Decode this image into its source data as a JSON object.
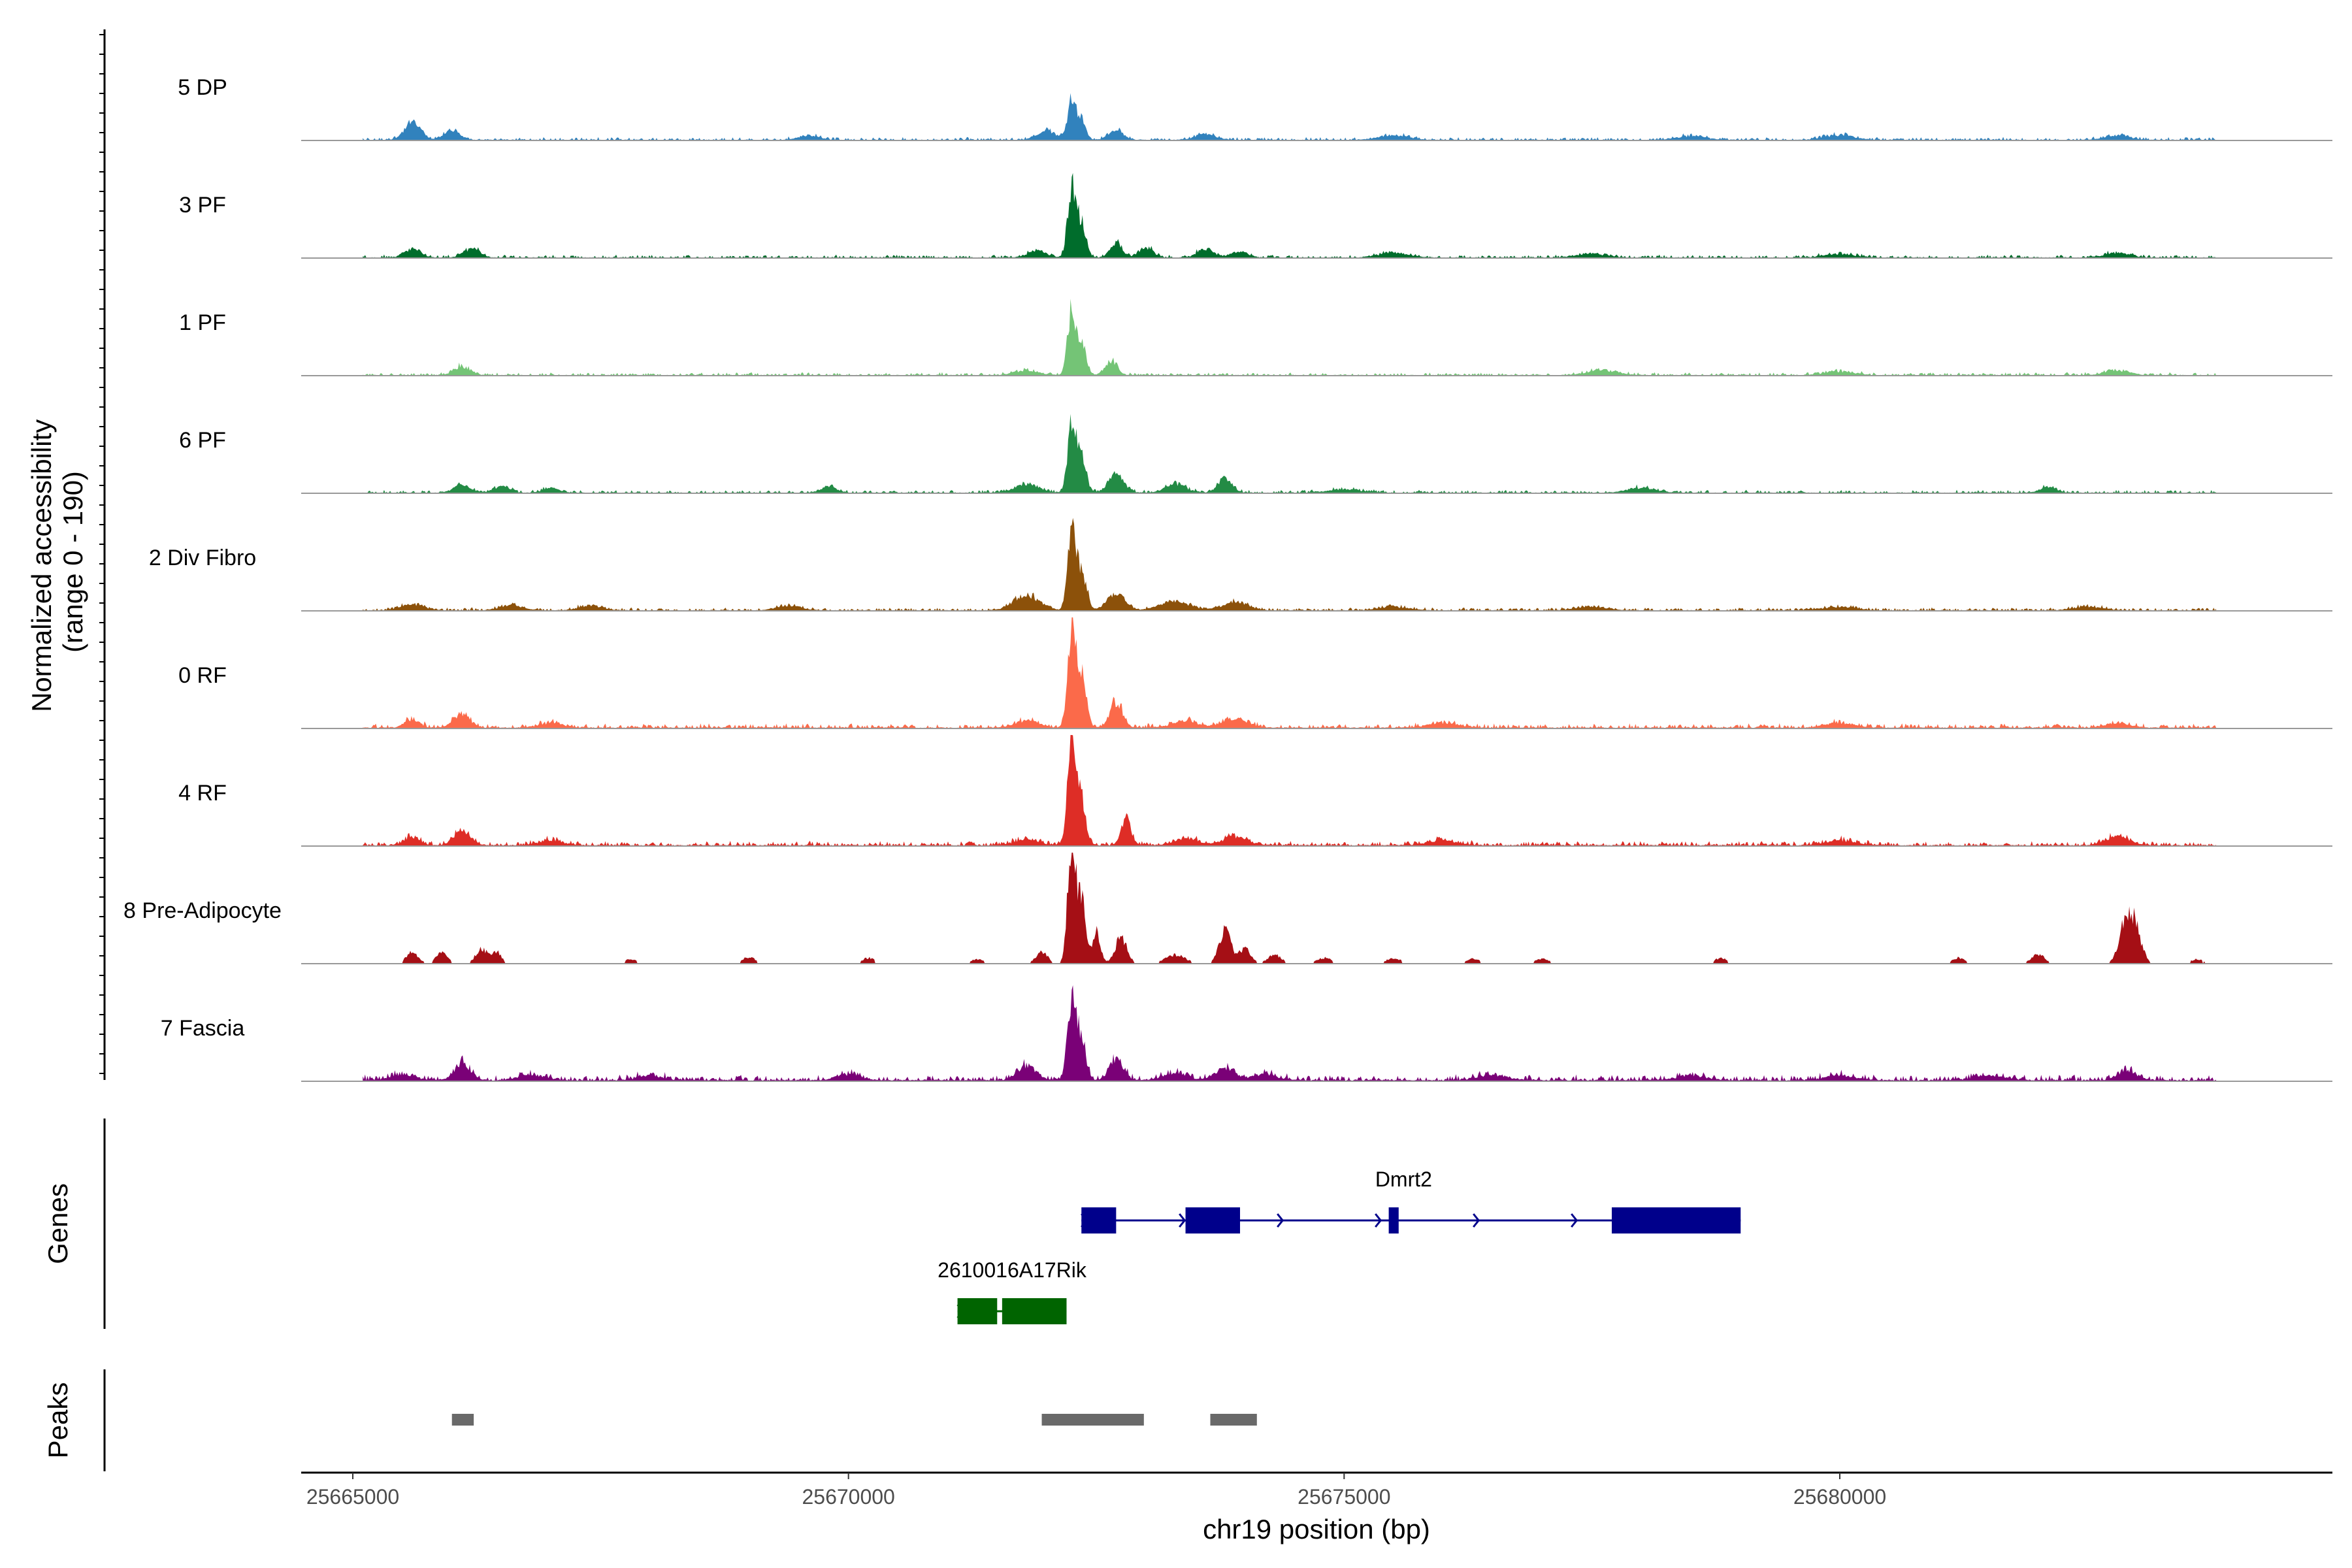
{
  "chart_data": {
    "type": "area",
    "genome_region": {
      "chromosome": "chr19",
      "start": 25664900,
      "end": 25684000
    },
    "y_axis": {
      "label_line1": "Normalized accessibility",
      "label_line2": "(range 0 - 190)",
      "ylim": [
        0,
        190
      ]
    },
    "x_axis": {
      "label": "chr19 position (bp)",
      "ticks": [
        25665000,
        25670000,
        25675000,
        25680000
      ],
      "tick_labels": [
        "25665000",
        "25670000",
        "25675000",
        "25680000"
      ]
    },
    "series": [
      {
        "name": "5 DP",
        "color": "#3182bd",
        "baseline": 2,
        "peaks": [
          [
            25665600,
            30,
            80
          ],
          [
            25666000,
            15,
            80
          ],
          [
            25669600,
            8,
            100
          ],
          [
            25672000,
            15,
            100
          ],
          [
            25672250,
            70,
            40
          ],
          [
            25672350,
            35,
            40
          ],
          [
            25672700,
            18,
            70
          ],
          [
            25673600,
            10,
            100
          ],
          [
            25675500,
            8,
            150
          ],
          [
            25678500,
            6,
            150
          ],
          [
            25680000,
            8,
            150
          ],
          [
            25682800,
            8,
            120
          ]
        ]
      },
      {
        "name": "3 PF",
        "color": "#006d2c",
        "baseline": 2,
        "peaks": [
          [
            25665600,
            15,
            80
          ],
          [
            25666200,
            15,
            80
          ],
          [
            25671900,
            12,
            90
          ],
          [
            25672250,
            120,
            40
          ],
          [
            25672350,
            60,
            45
          ],
          [
            25672700,
            25,
            60
          ],
          [
            25673000,
            18,
            70
          ],
          [
            25673600,
            15,
            80
          ],
          [
            25673950,
            10,
            80
          ],
          [
            25675500,
            8,
            150
          ],
          [
            25677500,
            6,
            150
          ],
          [
            25680000,
            6,
            150
          ],
          [
            25682800,
            8,
            120
          ]
        ]
      },
      {
        "name": "1 PF",
        "color": "#74c476",
        "baseline": 2,
        "peaks": [
          [
            25666100,
            15,
            80
          ],
          [
            25671800,
            8,
            120
          ],
          [
            25672250,
            110,
            40
          ],
          [
            25672350,
            60,
            45
          ],
          [
            25672650,
            25,
            60
          ],
          [
            25677600,
            8,
            150
          ],
          [
            25680000,
            6,
            150
          ],
          [
            25682800,
            8,
            120
          ]
        ]
      },
      {
        "name": "6 PF",
        "color": "#238b45",
        "baseline": 2,
        "peaks": [
          [
            25666100,
            15,
            80
          ],
          [
            25666500,
            10,
            80
          ],
          [
            25667000,
            8,
            80
          ],
          [
            25669800,
            10,
            80
          ],
          [
            25671800,
            15,
            120
          ],
          [
            25672250,
            120,
            40
          ],
          [
            25672350,
            70,
            45
          ],
          [
            25672700,
            30,
            80
          ],
          [
            25673300,
            15,
            100
          ],
          [
            25673800,
            25,
            70
          ],
          [
            25675000,
            6,
            150
          ],
          [
            25678000,
            8,
            150
          ],
          [
            25682100,
            10,
            80
          ]
        ]
      },
      {
        "name": "2 Div Fibro",
        "color": "#8c510a",
        "baseline": 2,
        "peaks": [
          [
            25665600,
            10,
            120
          ],
          [
            25666600,
            8,
            120
          ],
          [
            25667400,
            8,
            120
          ],
          [
            25669400,
            8,
            120
          ],
          [
            25671800,
            25,
            130
          ],
          [
            25672250,
            130,
            40
          ],
          [
            25672350,
            70,
            50
          ],
          [
            25672700,
            30,
            90
          ],
          [
            25673300,
            15,
            150
          ],
          [
            25673900,
            15,
            120
          ],
          [
            25675500,
            6,
            150
          ],
          [
            25677500,
            6,
            150
          ],
          [
            25680000,
            6,
            150
          ],
          [
            25682500,
            6,
            150
          ]
        ]
      },
      {
        "name": "0 RF",
        "color": "#fb6a4a",
        "baseline": 3,
        "peaks": [
          [
            25665600,
            15,
            70
          ],
          [
            25666100,
            25,
            80
          ],
          [
            25667000,
            8,
            120
          ],
          [
            25671800,
            12,
            120
          ],
          [
            25672250,
            170,
            40
          ],
          [
            25672350,
            90,
            45
          ],
          [
            25672700,
            45,
            60
          ],
          [
            25673400,
            12,
            120
          ],
          [
            25673900,
            15,
            120
          ],
          [
            25676000,
            8,
            150
          ],
          [
            25680000,
            8,
            150
          ],
          [
            25682800,
            8,
            120
          ]
        ]
      },
      {
        "name": "4 RF",
        "color": "#de2d26",
        "baseline": 3,
        "peaks": [
          [
            25665600,
            15,
            70
          ],
          [
            25666100,
            25,
            80
          ],
          [
            25667000,
            8,
            120
          ],
          [
            25671800,
            10,
            120
          ],
          [
            25672250,
            170,
            40
          ],
          [
            25672350,
            80,
            45
          ],
          [
            25672800,
            45,
            50
          ],
          [
            25673400,
            12,
            120
          ],
          [
            25673900,
            15,
            120
          ],
          [
            25676000,
            8,
            150
          ],
          [
            25680000,
            8,
            150
          ],
          [
            25682800,
            15,
            120
          ]
        ]
      },
      {
        "name": "8 Pre-Adipocyte",
        "color": "#a50f15",
        "baseline": 0,
        "peaks": [
          [
            25665600,
            20,
            60
          ],
          [
            25665900,
            18,
            60
          ],
          [
            25666300,
            25,
            60
          ],
          [
            25666450,
            20,
            50
          ],
          [
            25667800,
            8,
            60
          ],
          [
            25669000,
            12,
            60
          ],
          [
            25670200,
            10,
            60
          ],
          [
            25671300,
            8,
            60
          ],
          [
            25671950,
            20,
            60
          ],
          [
            25672250,
            200,
            40
          ],
          [
            25672350,
            110,
            40
          ],
          [
            25672500,
            60,
            40
          ],
          [
            25672750,
            45,
            60
          ],
          [
            25673300,
            15,
            100
          ],
          [
            25673800,
            55,
            60
          ],
          [
            25674000,
            25,
            60
          ],
          [
            25674300,
            15,
            70
          ],
          [
            25674800,
            10,
            70
          ],
          [
            25675500,
            10,
            70
          ],
          [
            25676300,
            8,
            70
          ],
          [
            25677000,
            8,
            70
          ],
          [
            25678800,
            10,
            60
          ],
          [
            25681200,
            10,
            60
          ],
          [
            25682000,
            15,
            70
          ],
          [
            25682900,
            80,
            70
          ],
          [
            25683000,
            35,
            60
          ],
          [
            25683600,
            8,
            60
          ]
        ]
      },
      {
        "name": "7 Fascia",
        "color": "#7a0177",
        "baseline": 4,
        "peaks": [
          [
            25665500,
            10,
            120
          ],
          [
            25666100,
            28,
            80
          ],
          [
            25666800,
            10,
            120
          ],
          [
            25668000,
            8,
            120
          ],
          [
            25670000,
            10,
            120
          ],
          [
            25671800,
            25,
            90
          ],
          [
            25672250,
            140,
            40
          ],
          [
            25672350,
            75,
            45
          ],
          [
            25672700,
            35,
            70
          ],
          [
            25673300,
            12,
            120
          ],
          [
            25673800,
            20,
            100
          ],
          [
            25674200,
            10,
            120
          ],
          [
            25676500,
            8,
            150
          ],
          [
            25678500,
            8,
            150
          ],
          [
            25680000,
            8,
            150
          ],
          [
            25681500,
            8,
            150
          ],
          [
            25682900,
            15,
            100
          ]
        ]
      }
    ],
    "genes": [
      {
        "name": "Dmrt2",
        "color": "#00008b",
        "strand": "+",
        "start": 25672350,
        "end": 25679000,
        "exons": [
          [
            25672350,
            25672700
          ],
          [
            25673400,
            25673950
          ],
          [
            25675450,
            25675550
          ],
          [
            25677700,
            25679000
          ]
        ]
      },
      {
        "name": "2610016A17Rik",
        "color": "#006400",
        "strand": "+",
        "start": 25671100,
        "end": 25672200,
        "exons": [
          [
            25671100,
            25671500
          ],
          [
            25671550,
            25672200
          ]
        ]
      }
    ],
    "genes_panel_title": "Genes",
    "peaks_panel_title": "Peaks",
    "peaks_color": "#696969",
    "peaks": [
      [
        25666000,
        25666220
      ],
      [
        25671950,
        25672980
      ],
      [
        25673650,
        25674120
      ]
    ]
  }
}
